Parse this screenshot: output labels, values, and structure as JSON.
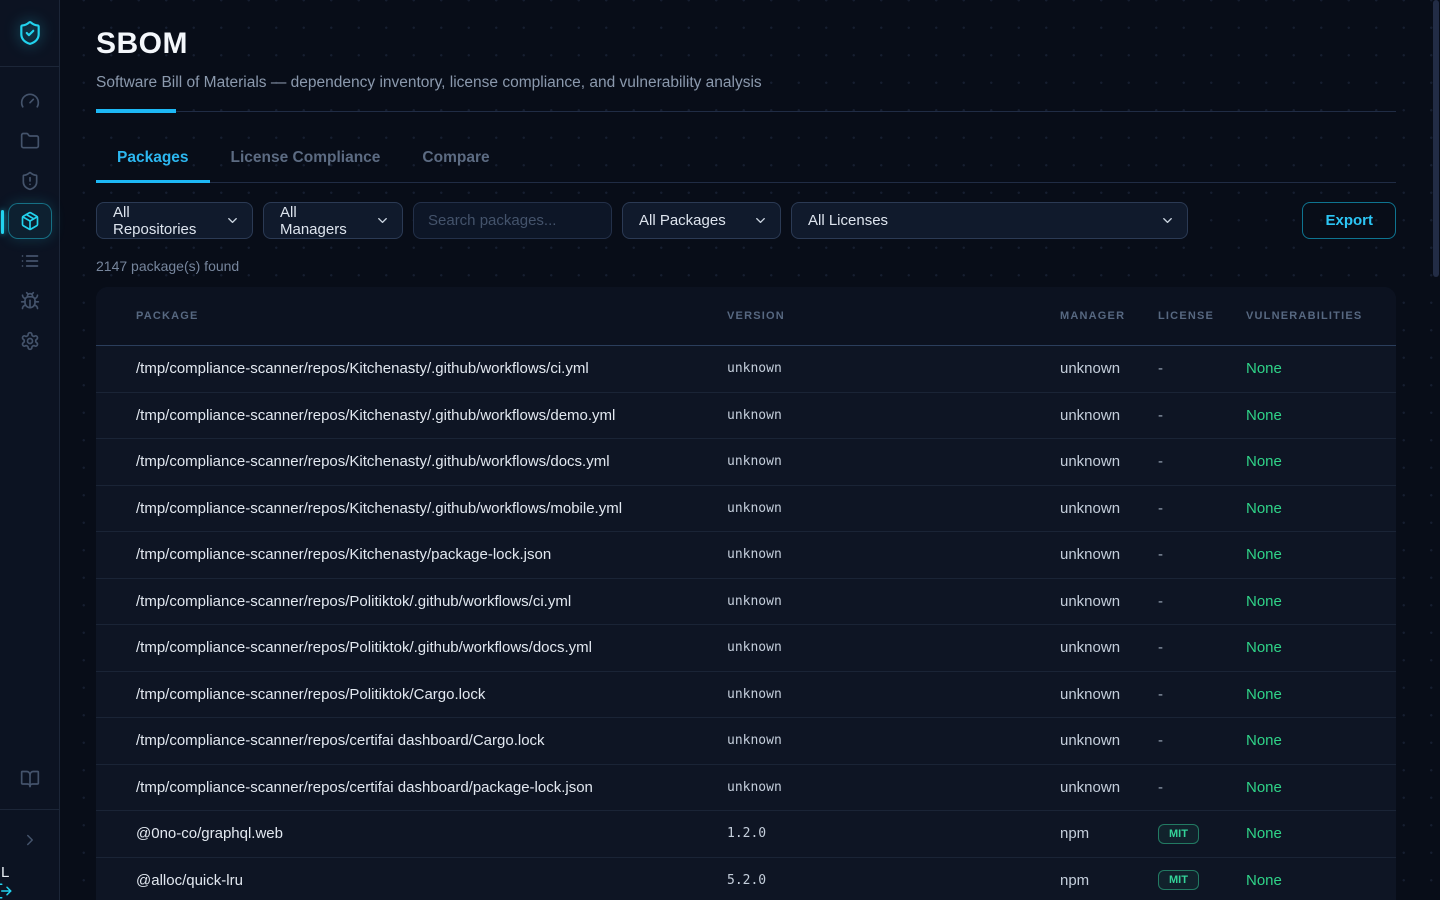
{
  "app": {
    "logo_icon": "shield-check-icon"
  },
  "sidebar": {
    "items": [
      {
        "id": "dashboard",
        "icon": "gauge-icon",
        "active": false
      },
      {
        "id": "repositories",
        "icon": "folder-icon",
        "active": false
      },
      {
        "id": "alerts",
        "icon": "shield-alert-icon",
        "active": false
      },
      {
        "id": "sbom",
        "icon": "package-icon",
        "active": true
      },
      {
        "id": "reports",
        "icon": "list-icon",
        "active": false
      },
      {
        "id": "issues",
        "icon": "bug-icon",
        "active": false
      },
      {
        "id": "settings",
        "icon": "gear-icon",
        "active": false
      }
    ],
    "bottom_items": [
      {
        "id": "docs",
        "icon": "book-icon"
      },
      {
        "id": "collapse",
        "icon": "chevron-right-icon"
      }
    ],
    "corner_text": "L",
    "corner_icon": "logout-icon"
  },
  "header": {
    "title": "SBOM",
    "subtitle": "Software Bill of Materials — dependency inventory, license compliance, and vulnerability analysis"
  },
  "tabs": [
    {
      "label": "Packages",
      "active": true
    },
    {
      "label": "License Compliance",
      "active": false
    },
    {
      "label": "Compare",
      "active": false
    }
  ],
  "filters": {
    "repositories_value": "All Repositories",
    "managers_value": "All Managers",
    "search_placeholder": "Search packages...",
    "packages_value": "All Packages",
    "licenses_value": "All Licenses",
    "export_label": "Export"
  },
  "results_count": "2147 package(s) found",
  "table": {
    "columns": [
      "PACKAGE",
      "VERSION",
      "MANAGER",
      "LICENSE",
      "VULNERABILITIES"
    ],
    "rows": [
      {
        "package": "/tmp/compliance-scanner/repos/Kitchenasty/.github/workflows/ci.yml",
        "version": "unknown",
        "manager": "unknown",
        "license": "-",
        "license_badge": false,
        "vulnerabilities": "None"
      },
      {
        "package": "/tmp/compliance-scanner/repos/Kitchenasty/.github/workflows/demo.yml",
        "version": "unknown",
        "manager": "unknown",
        "license": "-",
        "license_badge": false,
        "vulnerabilities": "None"
      },
      {
        "package": "/tmp/compliance-scanner/repos/Kitchenasty/.github/workflows/docs.yml",
        "version": "unknown",
        "manager": "unknown",
        "license": "-",
        "license_badge": false,
        "vulnerabilities": "None"
      },
      {
        "package": "/tmp/compliance-scanner/repos/Kitchenasty/.github/workflows/mobile.yml",
        "version": "unknown",
        "manager": "unknown",
        "license": "-",
        "license_badge": false,
        "vulnerabilities": "None"
      },
      {
        "package": "/tmp/compliance-scanner/repos/Kitchenasty/package-lock.json",
        "version": "unknown",
        "manager": "unknown",
        "license": "-",
        "license_badge": false,
        "vulnerabilities": "None"
      },
      {
        "package": "/tmp/compliance-scanner/repos/Politiktok/.github/workflows/ci.yml",
        "version": "unknown",
        "manager": "unknown",
        "license": "-",
        "license_badge": false,
        "vulnerabilities": "None"
      },
      {
        "package": "/tmp/compliance-scanner/repos/Politiktok/.github/workflows/docs.yml",
        "version": "unknown",
        "manager": "unknown",
        "license": "-",
        "license_badge": false,
        "vulnerabilities": "None"
      },
      {
        "package": "/tmp/compliance-scanner/repos/Politiktok/Cargo.lock",
        "version": "unknown",
        "manager": "unknown",
        "license": "-",
        "license_badge": false,
        "vulnerabilities": "None"
      },
      {
        "package": "/tmp/compliance-scanner/repos/certifai dashboard/Cargo.lock",
        "version": "unknown",
        "manager": "unknown",
        "license": "-",
        "license_badge": false,
        "vulnerabilities": "None"
      },
      {
        "package": "/tmp/compliance-scanner/repos/certifai dashboard/package-lock.json",
        "version": "unknown",
        "manager": "unknown",
        "license": "-",
        "license_badge": false,
        "vulnerabilities": "None"
      },
      {
        "package": "@0no-co/graphql.web",
        "version": "1.2.0",
        "manager": "npm",
        "license": "MIT",
        "license_badge": true,
        "vulnerabilities": "None"
      },
      {
        "package": "@alloc/quick-lru",
        "version": "5.2.0",
        "manager": "npm",
        "license": "MIT",
        "license_badge": true,
        "vulnerabilities": "None"
      }
    ]
  },
  "colors": {
    "accent_cyan": "#22d3ee",
    "tab_active": "#2cb7f0",
    "success_green": "#34d399",
    "page_bg": "#080d18",
    "card_bg": "#0e1524"
  }
}
